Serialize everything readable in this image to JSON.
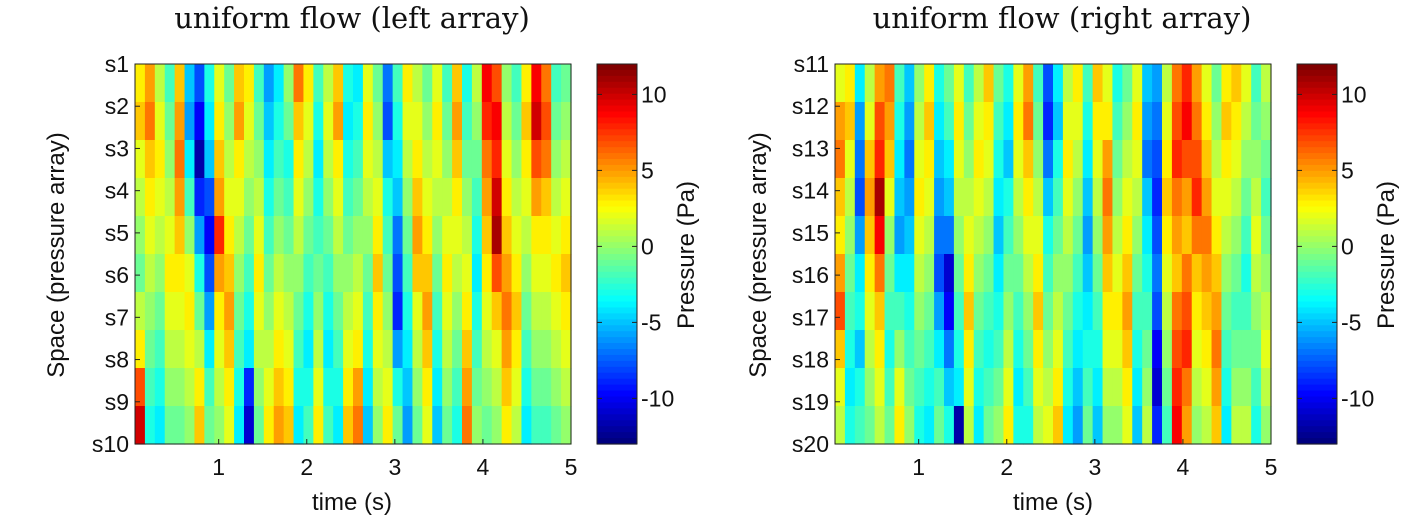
{
  "chart_data": [
    {
      "type": "heatmap",
      "title": "uniform flow (left array)",
      "xlabel": "time (s)",
      "ylabel": "Space (pressure array)",
      "colorbar_label": "Pressure (Pa)",
      "colormap": "jet",
      "xlim": [
        0.05,
        5
      ],
      "x_ticks": [
        "1",
        "2",
        "3",
        "4",
        "5"
      ],
      "y_ticks": [
        "s1",
        "s2",
        "s3",
        "s4",
        "s5",
        "s6",
        "s7",
        "s8",
        "s9",
        "s10"
      ],
      "clim": [
        -13,
        12
      ],
      "colorbar_ticks": [
        "10",
        "5",
        "0",
        "-5",
        "-10"
      ],
      "values": [
        [
          3,
          5,
          1,
          -2,
          4,
          -5,
          -8,
          -3,
          2,
          -1,
          4,
          3,
          -2,
          -6,
          -4,
          0,
          6,
          3,
          -2,
          1,
          4,
          -3,
          -4,
          2,
          -1,
          -7,
          -2,
          3,
          1,
          -1,
          2,
          -2,
          4,
          -3,
          1,
          9,
          7,
          0,
          -2,
          3,
          9,
          6,
          -2,
          -1
        ],
        [
          4,
          6,
          2,
          -1,
          5,
          -6,
          -10,
          -4,
          3,
          0,
          5,
          2,
          -1,
          -5,
          -3,
          -1,
          4,
          2,
          -3,
          2,
          5,
          -4,
          -3,
          3,
          0,
          -8,
          -3,
          2,
          2,
          0,
          3,
          -1,
          5,
          -2,
          0,
          8,
          9,
          1,
          -1,
          4,
          10,
          7,
          -1,
          0
        ],
        [
          2,
          4,
          3,
          0,
          6,
          -4,
          -12,
          -5,
          4,
          1,
          3,
          1,
          0,
          -4,
          -2,
          -3,
          3,
          1,
          -4,
          1,
          3,
          -3,
          -2,
          2,
          1,
          -5,
          -4,
          1,
          3,
          1,
          2,
          0,
          4,
          -1,
          -1,
          6,
          8,
          2,
          0,
          3,
          7,
          6,
          0,
          1
        ],
        [
          1,
          3,
          2,
          1,
          5,
          -2,
          -9,
          -8,
          5,
          2,
          2,
          0,
          1,
          -3,
          -1,
          -2,
          2,
          0,
          -3,
          0,
          2,
          -2,
          -1,
          1,
          2,
          -3,
          -5,
          0,
          4,
          2,
          1,
          1,
          3,
          0,
          -2,
          5,
          10,
          3,
          1,
          2,
          5,
          4,
          1,
          2
        ],
        [
          0,
          2,
          1,
          2,
          4,
          0,
          -6,
          -10,
          8,
          3,
          1,
          -1,
          2,
          -2,
          0,
          -1,
          1,
          -1,
          -2,
          -1,
          1,
          -1,
          0,
          0,
          3,
          -2,
          -7,
          -1,
          5,
          3,
          0,
          2,
          2,
          1,
          -3,
          4,
          11,
          4,
          2,
          1,
          3,
          3,
          2,
          3
        ],
        [
          -1,
          1,
          0,
          3,
          3,
          2,
          -3,
          -8,
          5,
          4,
          0,
          -2,
          3,
          -1,
          1,
          0,
          0,
          -2,
          -1,
          -2,
          0,
          0,
          1,
          -1,
          4,
          -1,
          -8,
          -2,
          4,
          4,
          -1,
          3,
          1,
          2,
          -4,
          3,
          7,
          5,
          3,
          0,
          2,
          2,
          3,
          4
        ],
        [
          1,
          0,
          -1,
          2,
          2,
          3,
          -1,
          -6,
          3,
          5,
          -1,
          -3,
          2,
          0,
          2,
          1,
          -1,
          -3,
          0,
          -3,
          -1,
          1,
          2,
          -2,
          3,
          0,
          -9,
          -3,
          2,
          5,
          -2,
          2,
          0,
          3,
          -3,
          2,
          4,
          6,
          4,
          -1,
          1,
          1,
          2,
          3
        ],
        [
          3,
          -1,
          -2,
          1,
          1,
          2,
          1,
          -4,
          2,
          4,
          -2,
          -4,
          1,
          1,
          3,
          2,
          -2,
          -4,
          1,
          -4,
          -2,
          2,
          3,
          -3,
          2,
          1,
          -6,
          -4,
          1,
          4,
          -3,
          1,
          -1,
          4,
          -2,
          1,
          2,
          5,
          3,
          -2,
          0,
          0,
          1,
          2
        ],
        [
          7,
          -2,
          -3,
          0,
          0,
          1,
          3,
          -2,
          1,
          3,
          -3,
          -9,
          0,
          2,
          4,
          3,
          -3,
          -3,
          2,
          -3,
          -3,
          3,
          5,
          -4,
          1,
          2,
          -3,
          -5,
          0,
          3,
          -4,
          0,
          -2,
          5,
          -1,
          0,
          1,
          4,
          2,
          -3,
          -1,
          -1,
          0,
          1
        ],
        [
          10,
          -3,
          -4,
          -1,
          -1,
          0,
          4,
          -1,
          0,
          2,
          -4,
          -11,
          -1,
          3,
          5,
          4,
          -4,
          -2,
          3,
          -2,
          -4,
          4,
          6,
          -5,
          0,
          3,
          -1,
          -6,
          -1,
          2,
          -5,
          -1,
          -3,
          6,
          0,
          -1,
          0,
          3,
          1,
          -4,
          -2,
          -2,
          -1,
          0
        ]
      ]
    },
    {
      "type": "heatmap",
      "title": "uniform flow (right array)",
      "xlabel": "time (s)",
      "ylabel": "Space (pressure array)",
      "colorbar_label": "Pressure (Pa)",
      "colormap": "jet",
      "xlim": [
        0.05,
        5
      ],
      "x_ticks": [
        "1",
        "2",
        "3",
        "4",
        "5"
      ],
      "y_ticks": [
        "s11",
        "s12",
        "s13",
        "s14",
        "s15",
        "s16",
        "s17",
        "s18",
        "s19",
        "s20"
      ],
      "clim": [
        -13,
        12
      ],
      "colorbar_ticks": [
        "10",
        "5",
        "0",
        "-5",
        "-10"
      ],
      "values": [
        [
          2,
          3,
          -4,
          1,
          5,
          6,
          -2,
          -5,
          0,
          3,
          -3,
          -1,
          2,
          -2,
          1,
          4,
          -1,
          -3,
          2,
          5,
          -2,
          -8,
          -4,
          1,
          3,
          -2,
          4,
          2,
          -3,
          -1,
          2,
          -5,
          -6,
          1,
          6,
          8,
          5,
          2,
          -1,
          3,
          4,
          2,
          -2,
          1
        ],
        [
          5,
          4,
          -6,
          2,
          7,
          5,
          -3,
          -6,
          1,
          4,
          -4,
          -2,
          3,
          -1,
          2,
          3,
          -2,
          -4,
          3,
          6,
          -1,
          -9,
          -5,
          2,
          2,
          -3,
          3,
          3,
          -2,
          0,
          3,
          -6,
          -7,
          2,
          7,
          9,
          6,
          3,
          0,
          4,
          3,
          1,
          -1,
          0
        ],
        [
          6,
          2,
          -7,
          4,
          8,
          4,
          -4,
          -7,
          2,
          3,
          -5,
          -4,
          2,
          0,
          3,
          2,
          -3,
          -5,
          2,
          4,
          0,
          -7,
          -3,
          3,
          1,
          -4,
          2,
          5,
          -1,
          1,
          2,
          -7,
          -8,
          3,
          8,
          7,
          7,
          4,
          1,
          3,
          2,
          0,
          0,
          -1
        ],
        [
          4,
          1,
          -8,
          5,
          11,
          2,
          -5,
          -6,
          3,
          2,
          -6,
          -5,
          1,
          1,
          2,
          1,
          -4,
          -3,
          1,
          3,
          1,
          -5,
          -2,
          2,
          0,
          -5,
          1,
          6,
          0,
          2,
          1,
          -5,
          -9,
          4,
          6,
          5,
          8,
          5,
          2,
          2,
          1,
          -1,
          1,
          -2
        ],
        [
          3,
          0,
          -6,
          4,
          9,
          0,
          -6,
          -5,
          2,
          1,
          -7,
          -7,
          0,
          2,
          1,
          0,
          -5,
          -2,
          0,
          2,
          2,
          -3,
          -1,
          1,
          -1,
          -6,
          0,
          5,
          1,
          3,
          0,
          -4,
          -8,
          3,
          5,
          4,
          6,
          6,
          3,
          1,
          0,
          -2,
          2,
          -1
        ],
        [
          5,
          -1,
          -4,
          3,
          6,
          -1,
          -4,
          -4,
          1,
          0,
          -8,
          -11,
          -1,
          3,
          0,
          -1,
          -4,
          -1,
          -1,
          1,
          3,
          -2,
          0,
          0,
          -2,
          -5,
          -1,
          4,
          2,
          4,
          -1,
          -3,
          -7,
          2,
          4,
          6,
          4,
          5,
          4,
          0,
          -1,
          -3,
          1,
          0
        ],
        [
          7,
          -2,
          -3,
          2,
          4,
          -2,
          -2,
          -3,
          0,
          -1,
          -6,
          -10,
          -2,
          4,
          -1,
          -2,
          -3,
          0,
          -2,
          0,
          4,
          -1,
          1,
          -1,
          -3,
          -4,
          -2,
          3,
          3,
          5,
          -2,
          -2,
          -8,
          1,
          6,
          7,
          3,
          4,
          5,
          -1,
          -2,
          -2,
          0,
          1
        ],
        [
          4,
          -3,
          -5,
          1,
          3,
          -3,
          0,
          -2,
          -1,
          -2,
          -4,
          -7,
          -3,
          3,
          -2,
          -3,
          -2,
          1,
          -3,
          -1,
          3,
          0,
          2,
          -2,
          -4,
          -3,
          -3,
          2,
          2,
          4,
          -3,
          -1,
          -10,
          0,
          7,
          8,
          2,
          3,
          6,
          -2,
          -1,
          -1,
          -1,
          2
        ],
        [
          2,
          -4,
          -3,
          0,
          2,
          -2,
          2,
          -1,
          -2,
          -3,
          -2,
          -5,
          -4,
          2,
          -3,
          -2,
          -1,
          2,
          -4,
          -2,
          2,
          1,
          3,
          -3,
          -5,
          -2,
          -4,
          1,
          1,
          3,
          -4,
          0,
          -11,
          -1,
          8,
          6,
          1,
          2,
          5,
          -3,
          0,
          0,
          -2,
          1
        ],
        [
          1,
          -3,
          -2,
          -1,
          1,
          -1,
          3,
          0,
          -3,
          -4,
          -1,
          -3,
          -12,
          1,
          -4,
          -1,
          0,
          3,
          -3,
          -3,
          1,
          2,
          4,
          -4,
          -6,
          -1,
          -5,
          0,
          0,
          2,
          -5,
          1,
          -9,
          -2,
          9,
          5,
          0,
          1,
          4,
          -4,
          1,
          1,
          -3,
          0
        ]
      ]
    }
  ]
}
